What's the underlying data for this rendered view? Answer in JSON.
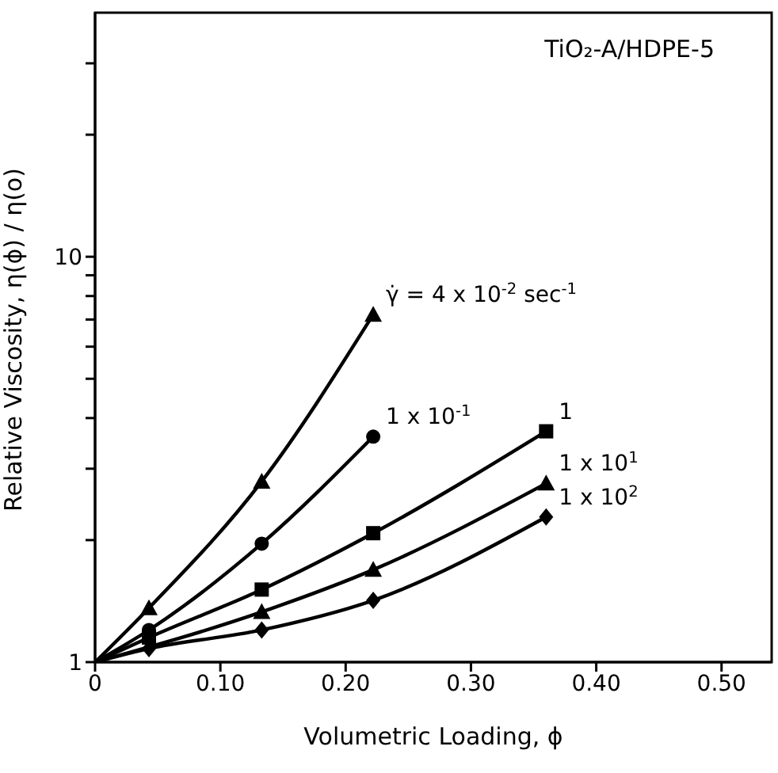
{
  "chart_data": {
    "type": "line",
    "xlabel": "Volumetric Loading, ϕ",
    "ylabel": "Relative Viscosity, η(ϕ) / η(o)",
    "annotations": [
      "TiO₂-A/HDPE-5"
    ],
    "log": "y",
    "grid": false,
    "legend": false,
    "line_style": "solid",
    "xlim": [
      0,
      0.54
    ],
    "xticks": [
      0,
      {
        "value": 0.1,
        "label": "0.10"
      },
      {
        "value": 0.2,
        "label": "0.20"
      },
      {
        "value": 0.3,
        "label": "0.30"
      },
      {
        "value": 0.4,
        "label": "0.40"
      },
      {
        "value": 0.5,
        "label": "0.50"
      }
    ],
    "ylim": [
      1,
      40
    ],
    "yticks": [
      1,
      {
        "value": 2,
        "label": null
      },
      {
        "value": 3,
        "label": null
      },
      {
        "value": 4,
        "label": null
      },
      {
        "value": 5,
        "label": null
      },
      {
        "value": 6,
        "label": null
      },
      {
        "value": 7,
        "label": null
      },
      {
        "value": 8,
        "label": null
      },
      {
        "value": 9,
        "label": null
      },
      10,
      {
        "value": 20,
        "label": null
      },
      {
        "value": 30,
        "label": null
      }
    ],
    "series": [
      {
        "name": "γ̇ = 4 x 10$^{-2}$ sec$^{-1}$",
        "color": "#000000",
        "marker": "triangle",
        "x": [
          0,
          0.043,
          0.133,
          0.222
        ],
        "values": [
          1,
          1.36,
          2.79,
          7.2
        ]
      },
      {
        "name": "1 x 10$^{-1}$",
        "color": "#000000",
        "marker": "circle",
        "x": [
          0,
          0.043,
          0.133,
          0.222
        ],
        "values": [
          1,
          1.2,
          1.96,
          3.6
        ]
      },
      {
        "name": "1",
        "color": "#000000",
        "marker": "square",
        "x": [
          0,
          0.043,
          0.133,
          0.222,
          0.36
        ],
        "values": [
          1,
          1.15,
          1.51,
          2.08,
          3.71
        ]
      },
      {
        "name": "1 x 10$^{1}$",
        "color": "#000000",
        "marker": "triangle",
        "x": [
          0,
          0.043,
          0.133,
          0.222,
          0.36
        ],
        "values": [
          1,
          null,
          1.33,
          1.69,
          2.76
        ]
      },
      {
        "name": "1 x 10$^{2}$",
        "color": "#000000",
        "marker": "diamond",
        "x": [
          0,
          0.043,
          0.133,
          0.222,
          0.36
        ],
        "values": [
          1,
          1.08,
          1.2,
          1.42,
          2.28
        ]
      }
    ]
  }
}
